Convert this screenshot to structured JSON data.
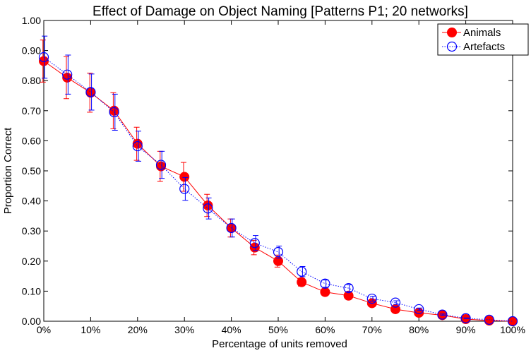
{
  "chart_data": {
    "type": "line",
    "title": "Effect of Damage on Object Naming [Patterns P1; 20 networks]",
    "xlabel": "Percentage of units removed",
    "ylabel": "Proportion Correct",
    "xlim": [
      0,
      100
    ],
    "ylim": [
      0,
      1
    ],
    "x": [
      0,
      5,
      10,
      15,
      20,
      25,
      30,
      35,
      40,
      45,
      50,
      55,
      60,
      65,
      70,
      75,
      80,
      85,
      90,
      95,
      100
    ],
    "x_tick_values": [
      0,
      10,
      20,
      30,
      40,
      50,
      60,
      70,
      80,
      90,
      100
    ],
    "x_tick_labels": [
      "0%",
      "10%",
      "20%",
      "30%",
      "40%",
      "50%",
      "60%",
      "70%",
      "80%",
      "90%",
      "100%"
    ],
    "y_tick_values": [
      0,
      0.1,
      0.2,
      0.3,
      0.4,
      0.5,
      0.6,
      0.7,
      0.8,
      0.9,
      1.0
    ],
    "y_tick_labels": [
      "0.00",
      "0.10",
      "0.20",
      "0.30",
      "0.40",
      "0.50",
      "0.60",
      "0.70",
      "0.80",
      "0.90",
      "1.00"
    ],
    "grid": false,
    "legend_position": "top-right",
    "series": [
      {
        "name": "Animals",
        "color": "#ff0000",
        "marker": "filled-circle",
        "line_style": "solid",
        "values": [
          0.865,
          0.81,
          0.76,
          0.7,
          0.59,
          0.515,
          0.48,
          0.385,
          0.31,
          0.245,
          0.2,
          0.13,
          0.097,
          0.085,
          0.06,
          0.04,
          0.028,
          0.02,
          0.007,
          0.002,
          0.0
        ],
        "errors": [
          0.07,
          0.07,
          0.065,
          0.06,
          0.055,
          0.05,
          0.048,
          0.037,
          0.03,
          0.024,
          0.02,
          0.013,
          0.01,
          0.008,
          0.006,
          0.004,
          0.003,
          0.002,
          0.001,
          0.0,
          0.0
        ]
      },
      {
        "name": "Artefacts",
        "color": "#0000ff",
        "marker": "open-circle",
        "line_style": "dotted",
        "values": [
          0.878,
          0.82,
          0.762,
          0.695,
          0.582,
          0.52,
          0.44,
          0.375,
          0.31,
          0.26,
          0.23,
          0.165,
          0.125,
          0.11,
          0.075,
          0.062,
          0.04,
          0.022,
          0.01,
          0.005,
          0.0
        ],
        "errors": [
          0.07,
          0.065,
          0.06,
          0.06,
          0.05,
          0.045,
          0.038,
          0.035,
          0.03,
          0.025,
          0.02,
          0.017,
          0.012,
          0.011,
          0.008,
          0.006,
          0.004,
          0.002,
          0.001,
          0.0,
          0.0
        ]
      }
    ]
  }
}
